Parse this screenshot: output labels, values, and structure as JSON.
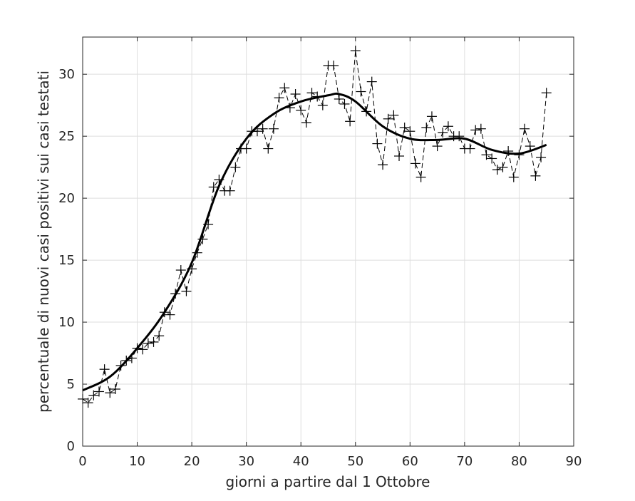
{
  "chart_data": {
    "type": "line",
    "xlabel": "giorni a partire dal 1 Ottobre",
    "ylabel": "percentuale di nuovi casi positivi sui casi testati",
    "xlim": [
      0,
      90
    ],
    "ylim": [
      0,
      33
    ],
    "xticks": [
      0,
      10,
      20,
      30,
      40,
      50,
      60,
      70,
      80,
      90
    ],
    "yticks": [
      0,
      5,
      10,
      15,
      20,
      25,
      30
    ],
    "grid": true,
    "legend": "none",
    "series": [
      {
        "style": "dashed line with plus markers",
        "color": "#000000",
        "x": [
          0,
          1,
          2,
          3,
          4,
          5,
          6,
          7,
          8,
          9,
          10,
          11,
          12,
          13,
          14,
          15,
          16,
          17,
          18,
          19,
          20,
          21,
          22,
          23,
          24,
          25,
          26,
          27,
          28,
          29,
          30,
          31,
          32,
          33,
          34,
          35,
          36,
          37,
          38,
          39,
          40,
          41,
          42,
          43,
          44,
          45,
          46,
          47,
          48,
          49,
          50,
          51,
          52,
          53,
          54,
          55,
          56,
          57,
          58,
          59,
          60,
          61,
          62,
          63,
          64,
          65,
          66,
          67,
          68,
          69,
          70,
          71,
          72,
          73,
          74,
          75,
          76,
          77,
          78,
          79,
          80,
          81,
          82,
          83,
          84,
          85
        ],
        "y": [
          3.8,
          3.5,
          4.1,
          4.4,
          6.2,
          4.3,
          4.6,
          6.5,
          6.9,
          7.1,
          7.9,
          7.8,
          8.3,
          8.4,
          8.9,
          10.8,
          10.6,
          12.3,
          14.2,
          12.5,
          14.3,
          15.6,
          16.7,
          17.9,
          20.9,
          21.5,
          20.6,
          20.6,
          22.5,
          24.0,
          24.0,
          25.4,
          25.4,
          25.6,
          24.0,
          25.6,
          28.1,
          28.9,
          27.3,
          28.4,
          27.1,
          26.1,
          28.5,
          28.2,
          27.5,
          30.7,
          30.7,
          28.0,
          27.6,
          26.2,
          31.9,
          28.6,
          27.0,
          29.4,
          24.4,
          22.7,
          26.4,
          26.7,
          23.4,
          25.7,
          25.4,
          22.8,
          21.7,
          25.7,
          26.6,
          24.2,
          25.3,
          25.8,
          25.0,
          25.0,
          24.0,
          24.0,
          25.5,
          25.6,
          23.5,
          23.2,
          22.3,
          22.5,
          23.8,
          21.7,
          23.5,
          25.6,
          24.2,
          21.8,
          23.3,
          28.5
        ]
      },
      {
        "style": "solid thick line",
        "color": "#000000",
        "x": [
          0,
          5,
          10,
          15,
          20,
          25,
          30,
          35,
          40,
          45,
          47,
          50,
          55,
          60,
          65,
          70,
          75,
          80,
          85
        ],
        "y": [
          4.5,
          5.6,
          7.9,
          10.8,
          14.8,
          21.0,
          24.8,
          26.8,
          27.8,
          28.3,
          28.4,
          27.8,
          25.8,
          24.8,
          24.7,
          24.8,
          23.9,
          23.6,
          24.3
        ]
      }
    ]
  }
}
